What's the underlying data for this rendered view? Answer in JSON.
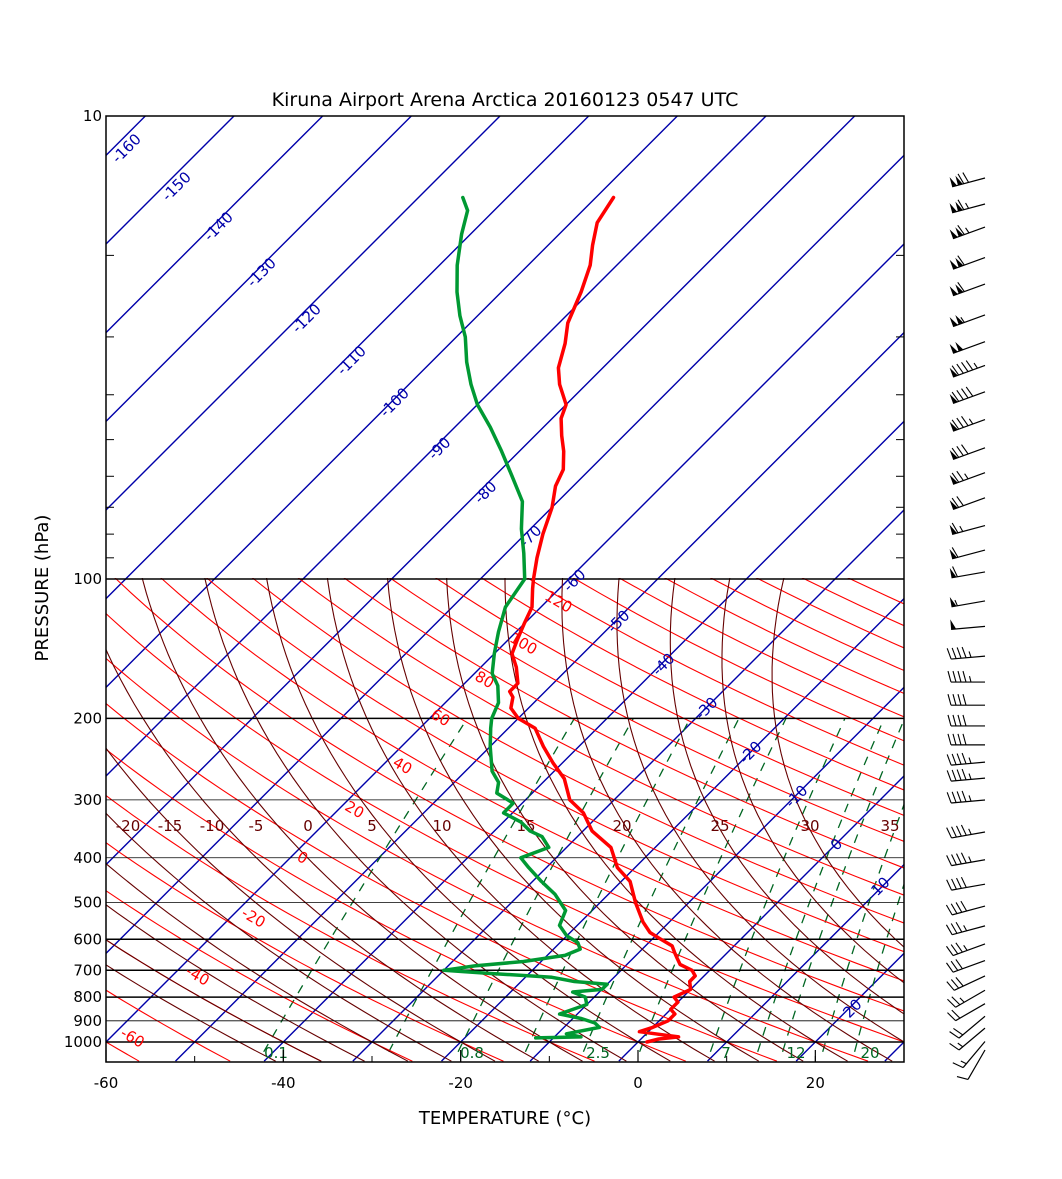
{
  "chart_data": {
    "type": "line",
    "title": "Kiruna Airport Arena Arctica 20160123 0547 UTC",
    "xlabel": "TEMPERATURE (°C)",
    "ylabel": "PRESSURE  (hPa)",
    "xlim": [
      -60,
      30
    ],
    "ylim": [
      1000,
      10
    ],
    "x_ticks": [
      -60,
      -40,
      -20,
      0,
      20
    ],
    "pressure_tick_labels": [
      {
        "p": 10,
        "label": "10"
      },
      {
        "p": 100,
        "label": "100"
      },
      {
        "p": 200,
        "label": "200"
      },
      {
        "p": 300,
        "label": "300"
      },
      {
        "p": 400,
        "label": "400"
      },
      {
        "p": 500,
        "label": "500"
      },
      {
        "p": 600,
        "label": "600"
      },
      {
        "p": 700,
        "label": "700"
      },
      {
        "p": 800,
        "label": "800"
      },
      {
        "p": 900,
        "label": "900"
      },
      {
        "p": 1000,
        "label": "1000"
      }
    ],
    "isotherm_labels": [
      "-160",
      "-150",
      "-140",
      "-130",
      "-120",
      "-110",
      "-100",
      "-90",
      "-80",
      "-70",
      "-60",
      "-50",
      "-40",
      "-30",
      "-20",
      "-10",
      "0",
      "10",
      "20"
    ],
    "dry_adiabat_labels": [
      "120",
      "100",
      "80",
      "60",
      "40",
      "20",
      "0",
      "-20",
      "-40",
      "-60"
    ],
    "moist_adiabat_labels": [
      "-20",
      "-15",
      "-10",
      "-5",
      "0",
      "5",
      "10",
      "15",
      "20",
      "25",
      "30",
      "35"
    ],
    "mixing_ratio_labels": [
      "0.1",
      "0.8",
      "2.5",
      "7",
      "12",
      "20"
    ],
    "colors": {
      "isotherm": "#0000aa",
      "dry_adiabat": "#ff0000",
      "moist_adiabat": "#660000",
      "mixing_ratio": "#006622",
      "temperature": "#ff0000",
      "dewpoint": "#009933",
      "isobar": "#000000"
    },
    "series": [
      {
        "key": "temperature",
        "points": [
          [
            1,
            1000
          ],
          [
            2,
            985
          ],
          [
            4,
            975
          ],
          [
            2,
            965
          ],
          [
            -1,
            950
          ],
          [
            0,
            930
          ],
          [
            1,
            900
          ],
          [
            1,
            870
          ],
          [
            0,
            850
          ],
          [
            0,
            820
          ],
          [
            -1,
            800
          ],
          [
            0,
            770
          ],
          [
            -1,
            740
          ],
          [
            -1,
            720
          ],
          [
            -2,
            700
          ],
          [
            -4,
            680
          ],
          [
            -5,
            660
          ],
          [
            -6,
            640
          ],
          [
            -7,
            620
          ],
          [
            -9,
            600
          ],
          [
            -11,
            580
          ],
          [
            -13,
            550
          ],
          [
            -16,
            500
          ],
          [
            -19,
            450
          ],
          [
            -22,
            420
          ],
          [
            -25,
            380
          ],
          [
            -29,
            350
          ],
          [
            -32,
            320
          ],
          [
            -35,
            300
          ],
          [
            -38,
            270
          ],
          [
            -41,
            250
          ],
          [
            -44,
            230
          ],
          [
            -47,
            210
          ],
          [
            -50,
            200
          ],
          [
            -52,
            190
          ],
          [
            -53,
            180
          ],
          [
            -54,
            175
          ],
          [
            -54,
            168
          ],
          [
            -56,
            155
          ],
          [
            -58,
            145
          ],
          [
            -59,
            135
          ],
          [
            -60,
            125
          ],
          [
            -61,
            115
          ],
          [
            -63,
            105
          ],
          [
            -64,
            100
          ],
          [
            -66,
            90
          ],
          [
            -68,
            80
          ],
          [
            -70,
            70
          ],
          [
            -72,
            63
          ],
          [
            -73,
            58
          ],
          [
            -75,
            53
          ],
          [
            -77,
            49
          ],
          [
            -79,
            45
          ],
          [
            -80,
            42
          ],
          [
            -83,
            38
          ],
          [
            -85,
            35
          ],
          [
            -87,
            31
          ],
          [
            -89,
            28
          ],
          [
            -91,
            24
          ],
          [
            -93,
            21
          ],
          [
            -95,
            19
          ],
          [
            -97,
            17
          ],
          [
            -98,
            15
          ]
        ]
      },
      {
        "key": "dewpoint",
        "points": [
          [
            -12,
            980
          ],
          [
            -7,
            975
          ],
          [
            -9,
            960
          ],
          [
            -6,
            930
          ],
          [
            -7,
            910
          ],
          [
            -9,
            890
          ],
          [
            -12,
            870
          ],
          [
            -10,
            830
          ],
          [
            -11,
            800
          ],
          [
            -13,
            780
          ],
          [
            -10,
            770
          ],
          [
            -10,
            750
          ],
          [
            -14,
            740
          ],
          [
            -17,
            725
          ],
          [
            -25,
            710
          ],
          [
            -30,
            700
          ],
          [
            -27,
            685
          ],
          [
            -22,
            670
          ],
          [
            -18,
            650
          ],
          [
            -17,
            630
          ],
          [
            -18,
            610
          ],
          [
            -20,
            590
          ],
          [
            -22,
            560
          ],
          [
            -23,
            520
          ],
          [
            -26,
            480
          ],
          [
            -29,
            450
          ],
          [
            -32,
            420
          ],
          [
            -34,
            400
          ],
          [
            -32,
            380
          ],
          [
            -34,
            360
          ],
          [
            -36,
            350
          ],
          [
            -38,
            335
          ],
          [
            -41,
            320
          ],
          [
            -41,
            305
          ],
          [
            -44,
            290
          ],
          [
            -45,
            275
          ],
          [
            -47,
            260
          ],
          [
            -50,
            230
          ],
          [
            -52,
            210
          ],
          [
            -53,
            200
          ],
          [
            -54,
            185
          ],
          [
            -56,
            170
          ],
          [
            -58,
            160
          ],
          [
            -60,
            145
          ],
          [
            -62,
            130
          ],
          [
            -64,
            115
          ],
          [
            -65,
            100
          ],
          [
            -68,
            88
          ],
          [
            -71,
            78
          ],
          [
            -74,
            68
          ],
          [
            -78,
            60
          ],
          [
            -82,
            53
          ],
          [
            -86,
            47
          ],
          [
            -90,
            42
          ],
          [
            -93,
            38
          ],
          [
            -96,
            34
          ],
          [
            -99,
            30
          ],
          [
            -102,
            27
          ],
          [
            -105,
            24
          ],
          [
            -108,
            21
          ],
          [
            -111,
            18
          ],
          [
            -113,
            16
          ],
          [
            -115,
            15
          ]
        ]
      }
    ],
    "wind_profile": {
      "units": "kt",
      "barbs": [
        {
          "p": 1000,
          "dir": 210,
          "spd": 10
        },
        {
          "p": 960,
          "dir": 220,
          "spd": 15
        },
        {
          "p": 900,
          "dir": 230,
          "spd": 15
        },
        {
          "p": 850,
          "dir": 230,
          "spd": 20
        },
        {
          "p": 800,
          "dir": 240,
          "spd": 20
        },
        {
          "p": 750,
          "dir": 240,
          "spd": 25
        },
        {
          "p": 700,
          "dir": 245,
          "spd": 30
        },
        {
          "p": 650,
          "dir": 250,
          "spd": 30
        },
        {
          "p": 600,
          "dir": 250,
          "spd": 35
        },
        {
          "p": 550,
          "dir": 255,
          "spd": 35
        },
        {
          "p": 500,
          "dir": 255,
          "spd": 40
        },
        {
          "p": 450,
          "dir": 260,
          "spd": 40
        },
        {
          "p": 400,
          "dir": 260,
          "spd": 45
        },
        {
          "p": 350,
          "dir": 260,
          "spd": 45
        },
        {
          "p": 300,
          "dir": 265,
          "spd": 45
        },
        {
          "p": 270,
          "dir": 265,
          "spd": 45
        },
        {
          "p": 250,
          "dir": 265,
          "spd": 45
        },
        {
          "p": 230,
          "dir": 270,
          "spd": 40
        },
        {
          "p": 210,
          "dir": 270,
          "spd": 40
        },
        {
          "p": 190,
          "dir": 270,
          "spd": 40
        },
        {
          "p": 170,
          "dir": 270,
          "spd": 45
        },
        {
          "p": 150,
          "dir": 265,
          "spd": 45
        },
        {
          "p": 130,
          "dir": 265,
          "spd": 50
        },
        {
          "p": 115,
          "dir": 260,
          "spd": 55
        },
        {
          "p": 100,
          "dir": 260,
          "spd": 60
        },
        {
          "p": 90,
          "dir": 255,
          "spd": 60
        },
        {
          "p": 80,
          "dir": 255,
          "spd": 65
        },
        {
          "p": 70,
          "dir": 250,
          "spd": 70
        },
        {
          "p": 62,
          "dir": 250,
          "spd": 75
        },
        {
          "p": 55,
          "dir": 250,
          "spd": 80
        },
        {
          "p": 48,
          "dir": 250,
          "spd": 85
        },
        {
          "p": 42,
          "dir": 250,
          "spd": 90
        },
        {
          "p": 37,
          "dir": 250,
          "spd": 95
        },
        {
          "p": 33,
          "dir": 250,
          "spd": 100
        },
        {
          "p": 29,
          "dir": 250,
          "spd": 105
        },
        {
          "p": 25,
          "dir": 250,
          "spd": 110
        },
        {
          "p": 22,
          "dir": 250,
          "spd": 110
        },
        {
          "p": 19,
          "dir": 250,
          "spd": 115
        },
        {
          "p": 17,
          "dir": 255,
          "spd": 115
        },
        {
          "p": 15,
          "dir": 255,
          "spd": 120
        }
      ]
    }
  }
}
